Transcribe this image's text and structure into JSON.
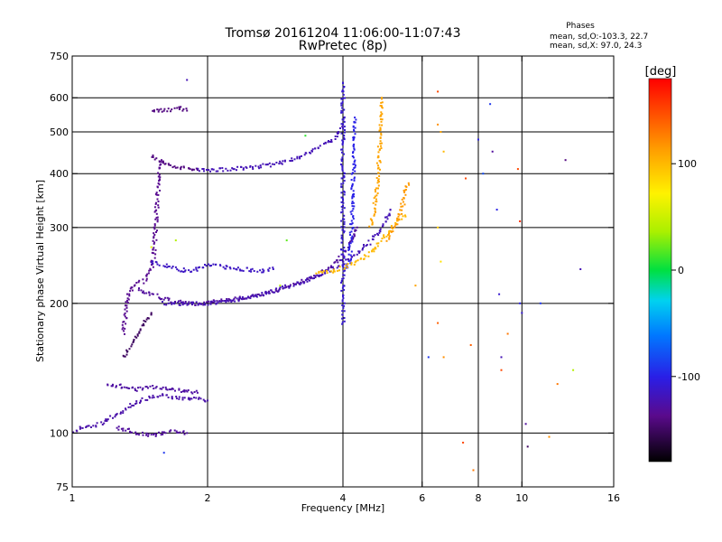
{
  "chart_data": {
    "type": "scatter",
    "title": "Tromsø 20161204 11:06:00-11:07:43",
    "subtitle": "RwPretec (8p)",
    "xlabel": "Frequency [MHz]",
    "ylabel": "Stationary phase Virtual Height [km]",
    "x_scale": "log",
    "y_scale": "log",
    "xlim": [
      1,
      16
    ],
    "ylim": [
      75,
      750
    ],
    "x_ticks": [
      1,
      2,
      4,
      6,
      8,
      10,
      16
    ],
    "y_ticks": [
      75,
      100,
      200,
      300,
      400,
      500,
      600,
      750
    ],
    "x_gridlines": [
      2,
      4,
      6,
      8,
      10
    ],
    "y_gridlines": [
      100,
      200,
      300,
      400,
      500,
      600
    ],
    "grid": true,
    "phases_box": {
      "title": "Phases",
      "line_o": "mean, sd,O:-103.3, 22.7",
      "line_x": "mean, sd,X:  97.0, 24.3"
    },
    "colorbar": {
      "label": "[deg]",
      "range": [
        -180,
        180
      ],
      "ticks": [
        100,
        0,
        -100
      ]
    },
    "traces": [
      {
        "phase": -125,
        "points": [
          [
            1.0,
            100
          ],
          [
            1.05,
            103
          ],
          [
            1.1,
            104
          ],
          [
            1.15,
            105
          ],
          [
            1.2,
            108
          ],
          [
            1.25,
            110
          ],
          [
            1.3,
            112
          ],
          [
            1.35,
            116
          ],
          [
            1.4,
            118
          ],
          [
            1.45,
            120
          ],
          [
            1.5,
            121
          ],
          [
            1.6,
            122
          ],
          [
            1.7,
            121
          ],
          [
            1.8,
            120
          ],
          [
            1.9,
            120
          ],
          [
            2.0,
            119
          ]
        ]
      },
      {
        "phase": -130,
        "points": [
          [
            1.25,
            103
          ],
          [
            1.3,
            102
          ],
          [
            1.4,
            100
          ],
          [
            1.5,
            99
          ],
          [
            1.6,
            100
          ],
          [
            1.7,
            101
          ],
          [
            1.8,
            100
          ]
        ]
      },
      {
        "phase": -128,
        "points": [
          [
            1.2,
            130
          ],
          [
            1.3,
            128
          ],
          [
            1.4,
            126
          ],
          [
            1.5,
            128
          ],
          [
            1.6,
            127
          ],
          [
            1.7,
            126
          ],
          [
            1.8,
            125
          ],
          [
            1.9,
            124
          ]
        ]
      },
      {
        "phase": -135,
        "points": [
          [
            1.3,
            170
          ],
          [
            1.31,
            185
          ],
          [
            1.32,
            200
          ],
          [
            1.34,
            212
          ],
          [
            1.36,
            218
          ],
          [
            1.4,
            222
          ],
          [
            1.45,
            226
          ],
          [
            1.5,
            240
          ],
          [
            1.52,
            260
          ],
          [
            1.53,
            290
          ],
          [
            1.54,
            330
          ],
          [
            1.55,
            360
          ],
          [
            1.56,
            400
          ],
          [
            1.58,
            430
          ]
        ]
      },
      {
        "phase": -130,
        "points": [
          [
            1.4,
            215
          ],
          [
            1.5,
            210
          ],
          [
            1.6,
            205
          ],
          [
            1.7,
            202
          ],
          [
            1.8,
            200
          ],
          [
            1.9,
            199
          ],
          [
            2.0,
            201
          ],
          [
            2.2,
            203
          ],
          [
            2.5,
            208
          ],
          [
            2.8,
            213
          ],
          [
            3.0,
            218
          ],
          [
            3.3,
            226
          ],
          [
            3.6,
            236
          ],
          [
            3.8,
            245
          ],
          [
            3.9,
            252
          ],
          [
            4.0,
            258
          ],
          [
            4.1,
            268
          ],
          [
            4.2,
            282
          ],
          [
            4.3,
            300
          ]
        ]
      },
      {
        "phase": -120,
        "points": [
          [
            1.6,
            200
          ],
          [
            1.8,
            199
          ],
          [
            2.0,
            200
          ],
          [
            2.3,
            203
          ],
          [
            2.6,
            209
          ],
          [
            2.9,
            216
          ],
          [
            3.2,
            223
          ],
          [
            3.5,
            231
          ],
          [
            3.8,
            240
          ],
          [
            4.0,
            248
          ],
          [
            4.2,
            256
          ],
          [
            4.4,
            266
          ],
          [
            4.6,
            278
          ],
          [
            4.8,
            292
          ],
          [
            5.0,
            312
          ],
          [
            5.1,
            330
          ]
        ]
      },
      {
        "phase": -140,
        "points": [
          [
            1.5,
            440
          ],
          [
            1.6,
            425
          ],
          [
            1.7,
            415
          ],
          [
            1.8,
            410
          ],
          [
            1.9,
            408
          ]
        ]
      },
      {
        "phase": -120,
        "points": [
          [
            1.9,
            410
          ],
          [
            2.0,
            408
          ],
          [
            2.2,
            409
          ],
          [
            2.5,
            413
          ],
          [
            2.8,
            420
          ],
          [
            3.0,
            427
          ],
          [
            3.2,
            437
          ],
          [
            3.4,
            450
          ],
          [
            3.6,
            465
          ],
          [
            3.8,
            480
          ],
          [
            3.9,
            495
          ],
          [
            4.0,
            520
          ]
        ]
      },
      {
        "phase": -110,
        "points": [
          [
            4.0,
            180
          ],
          [
            4.0,
            220
          ],
          [
            4.0,
            260
          ],
          [
            4.0,
            300
          ],
          [
            4.0,
            340
          ],
          [
            4.0,
            380
          ],
          [
            4.0,
            420
          ],
          [
            4.0,
            460
          ],
          [
            4.0,
            500
          ],
          [
            4.0,
            540
          ],
          [
            4.0,
            580
          ],
          [
            4.0,
            620
          ],
          [
            4.0,
            650
          ]
        ]
      },
      {
        "phase": -100,
        "points": [
          [
            4.1,
            240
          ],
          [
            4.15,
            260
          ],
          [
            4.18,
            300
          ],
          [
            4.2,
            340
          ],
          [
            4.22,
            400
          ],
          [
            4.24,
            470
          ],
          [
            4.25,
            540
          ]
        ]
      },
      {
        "phase": 100,
        "points": [
          [
            3.5,
            235
          ],
          [
            3.8,
            238
          ],
          [
            4.0,
            242
          ],
          [
            4.3,
            250
          ],
          [
            4.6,
            262
          ],
          [
            4.8,
            275
          ],
          [
            5.0,
            290
          ],
          [
            5.2,
            305
          ],
          [
            5.4,
            315
          ],
          [
            5.5,
            320
          ]
        ]
      },
      {
        "phase": 110,
        "points": [
          [
            4.6,
            300
          ],
          [
            4.7,
            330
          ],
          [
            4.75,
            360
          ],
          [
            4.8,
            400
          ],
          [
            4.82,
            450
          ],
          [
            4.85,
            500
          ],
          [
            4.87,
            560
          ],
          [
            4.88,
            600
          ]
        ]
      },
      {
        "phase": 115,
        "points": [
          [
            5.0,
            280
          ],
          [
            5.2,
            300
          ],
          [
            5.4,
            330
          ],
          [
            5.5,
            360
          ],
          [
            5.6,
            380
          ]
        ]
      },
      {
        "phase": -140,
        "points": [
          [
            1.5,
            560
          ],
          [
            1.6,
            560
          ],
          [
            1.7,
            565
          ],
          [
            1.75,
            570
          ],
          [
            1.8,
            560
          ]
        ]
      },
      {
        "phase": -150,
        "points": [
          [
            1.3,
            150
          ],
          [
            1.35,
            160
          ],
          [
            1.4,
            170
          ],
          [
            1.45,
            180
          ],
          [
            1.5,
            190
          ]
        ]
      },
      {
        "phase": -115,
        "points": [
          [
            1.5,
            250
          ],
          [
            1.6,
            245
          ],
          [
            1.7,
            240
          ],
          [
            1.8,
            238
          ],
          [
            1.9,
            240
          ],
          [
            2.0,
            245
          ],
          [
            2.6,
            238
          ],
          [
            2.8,
            240
          ]
        ]
      }
    ],
    "scattered_points": [
      [
        6.5,
        620,
        150
      ],
      [
        6.5,
        520,
        120
      ],
      [
        6.6,
        500,
        110
      ],
      [
        6.7,
        450,
        100
      ],
      [
        6.5,
        300,
        90
      ],
      [
        6.6,
        250,
        80
      ],
      [
        6.5,
        180,
        140
      ],
      [
        6.7,
        150,
        120
      ],
      [
        7.4,
        95,
        150
      ],
      [
        7.8,
        82,
        130
      ],
      [
        7.5,
        390,
        150
      ],
      [
        7.7,
        160,
        140
      ],
      [
        8.0,
        480,
        -100
      ],
      [
        8.2,
        400,
        -80
      ],
      [
        8.5,
        580,
        -90
      ],
      [
        8.6,
        450,
        -130
      ],
      [
        8.8,
        330,
        -100
      ],
      [
        8.9,
        210,
        -110
      ],
      [
        9.0,
        150,
        -120
      ],
      [
        9.0,
        140,
        150
      ],
      [
        9.3,
        170,
        130
      ],
      [
        9.8,
        410,
        150
      ],
      [
        9.9,
        310,
        160
      ],
      [
        9.9,
        200,
        -100
      ],
      [
        10.0,
        190,
        -110
      ],
      [
        10.2,
        105,
        -130
      ],
      [
        10.3,
        93,
        -150
      ],
      [
        11.0,
        200,
        -90
      ],
      [
        11.5,
        98,
        120
      ],
      [
        12.0,
        130,
        130
      ],
      [
        12.5,
        430,
        -140
      ],
      [
        13.0,
        140,
        40
      ],
      [
        13.5,
        240,
        -120
      ],
      [
        6.2,
        150,
        -90
      ],
      [
        5.8,
        220,
        110
      ],
      [
        3.0,
        280,
        20
      ],
      [
        3.3,
        490,
        10
      ],
      [
        1.5,
        270,
        60
      ],
      [
        1.7,
        280,
        40
      ],
      [
        1.8,
        660,
        -120
      ],
      [
        1.6,
        90,
        -90
      ],
      [
        2.9,
        220,
        40
      ],
      [
        5.5,
        75,
        130
      ]
    ]
  }
}
